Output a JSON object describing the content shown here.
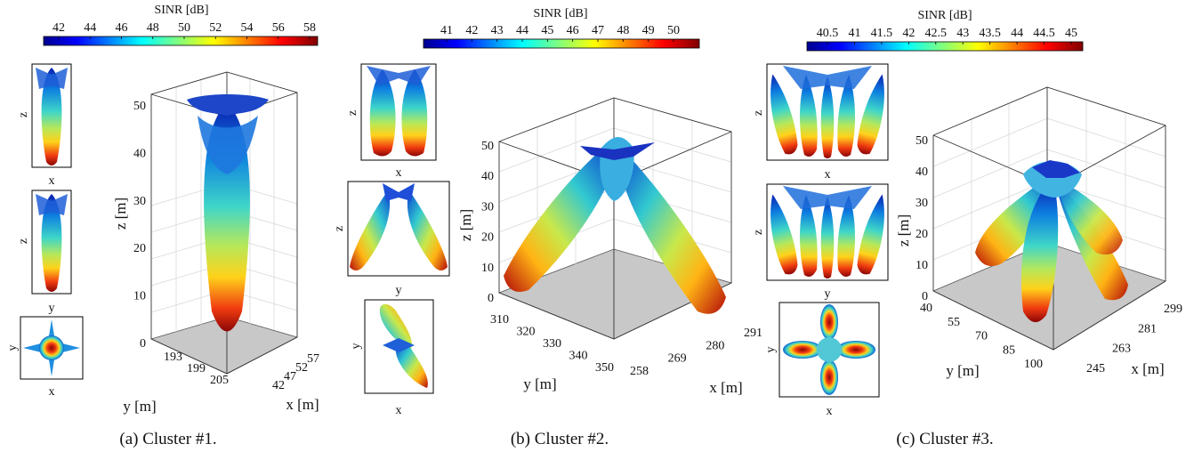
{
  "chart_data": [
    {
      "type": "3d-surface",
      "caption": "(a) Cluster #1.",
      "colorbar": {
        "label": "SINR [dB]",
        "ticks": [
          "42",
          "44",
          "46",
          "48",
          "50",
          "52",
          "54",
          "56",
          "58"
        ]
      },
      "axes": {
        "xlabel": "x [m]",
        "ylabel": "y [m]",
        "zlabel": "z [m]",
        "x_ticks": [
          "42",
          "47",
          "52",
          "57"
        ],
        "y_ticks": [
          "193",
          "199",
          "205"
        ],
        "z_ticks": [
          "0",
          "10",
          "20",
          "30",
          "40",
          "50"
        ]
      },
      "insets": [
        {
          "h": "x",
          "v": "z"
        },
        {
          "h": "y",
          "v": "z"
        },
        {
          "h": "x",
          "v": "y"
        }
      ]
    },
    {
      "type": "3d-surface",
      "caption": "(b) Cluster #2.",
      "colorbar": {
        "label": "SINR [dB]",
        "ticks": [
          "41",
          "42",
          "43",
          "44",
          "45",
          "46",
          "47",
          "48",
          "49",
          "50"
        ]
      },
      "axes": {
        "xlabel": "x [m]",
        "ylabel": "y [m]",
        "zlabel": "z [m]",
        "x_ticks": [
          "258",
          "269",
          "280",
          "291"
        ],
        "y_ticks": [
          "310",
          "320",
          "330",
          "340",
          "350"
        ],
        "z_ticks": [
          "0",
          "10",
          "20",
          "30",
          "40",
          "50"
        ]
      },
      "insets": [
        {
          "h": "x",
          "v": "z"
        },
        {
          "h": "y",
          "v": "z"
        },
        {
          "h": "x",
          "v": "y"
        }
      ]
    },
    {
      "type": "3d-surface",
      "caption": "(c) Cluster #3.",
      "colorbar": {
        "label": "SINR [dB]",
        "ticks": [
          "40.5",
          "41",
          "41.5",
          "42",
          "42.5",
          "43",
          "43.5",
          "44",
          "44.5",
          "45"
        ]
      },
      "axes": {
        "xlabel": "x [m]",
        "ylabel": "y [m]",
        "zlabel": "z [m]",
        "x_ticks": [
          "245",
          "263",
          "281",
          "299"
        ],
        "y_ticks": [
          "40",
          "55",
          "70",
          "85",
          "100"
        ],
        "z_ticks": [
          "0",
          "10",
          "20",
          "30",
          "40",
          "50"
        ]
      },
      "insets": [
        {
          "h": "x",
          "v": "z"
        },
        {
          "h": "y",
          "v": "z"
        },
        {
          "h": "x",
          "v": "y"
        }
      ]
    }
  ]
}
